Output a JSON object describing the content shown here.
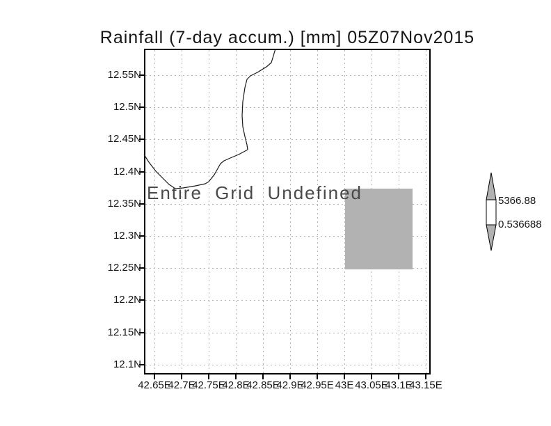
{
  "title": "Rainfall (7-day accum.) [mm] 05Z07Nov2015",
  "overlay_text": "Entire Grid Undefined",
  "axes": {
    "lat_ticks": [
      "12.55N",
      "12.5N",
      "12.45N",
      "12.4N",
      "12.35N",
      "12.3N",
      "12.25N",
      "12.2N",
      "12.15N",
      "12.1N"
    ],
    "lon_ticks": [
      "42.65E",
      "42.7E",
      "42.75E",
      "42.8E",
      "42.85E",
      "42.9E",
      "42.95E",
      "43E",
      "43.05E",
      "43.1E",
      "43.15E"
    ]
  },
  "colorbar": {
    "max_label": "5366.88",
    "min_label": "0.536688",
    "fill_color": "#b2b2b2"
  },
  "colors": {
    "grid": "#b3b3b3",
    "shaded_region": "#b2b2b2",
    "frame": "#000000",
    "overlay_text": "#4a4a4a"
  },
  "chart_data": {
    "type": "map",
    "title": "Rainfall (7-day accum.) [mm] 05Z07Nov2015",
    "variable": "Rainfall (7-day accum.)",
    "units": "mm",
    "time_label": "05Z07Nov2015",
    "xlabel": "",
    "ylabel": "",
    "lon_ticks": [
      42.65,
      42.7,
      42.75,
      42.8,
      42.85,
      42.9,
      42.95,
      43.0,
      43.05,
      43.1,
      43.15
    ],
    "lat_ticks": [
      12.55,
      12.5,
      12.45,
      12.4,
      12.35,
      12.3,
      12.25,
      12.2,
      12.15,
      12.1
    ],
    "lon_range": [
      42.63,
      43.16
    ],
    "lat_range": [
      12.085,
      12.59
    ],
    "grid": true,
    "grid_style": "dash-dot gray",
    "annotation": "Entire Grid Undefined",
    "data_status": "all grid values undefined; no rainfall field shaded",
    "shaded_region": {
      "lon_bounds": [
        43.0,
        43.125
      ],
      "lat_bounds": [
        12.25,
        12.375
      ],
      "color": "#b2b2b2"
    },
    "coastline": "shown (coast descends from top ~42.89E to west border ~12.37N)",
    "colorbar": {
      "orientation": "vertical",
      "position": "right",
      "max": 5366.88,
      "min": 0.536688,
      "segment_color": "#b2b2b2"
    }
  }
}
